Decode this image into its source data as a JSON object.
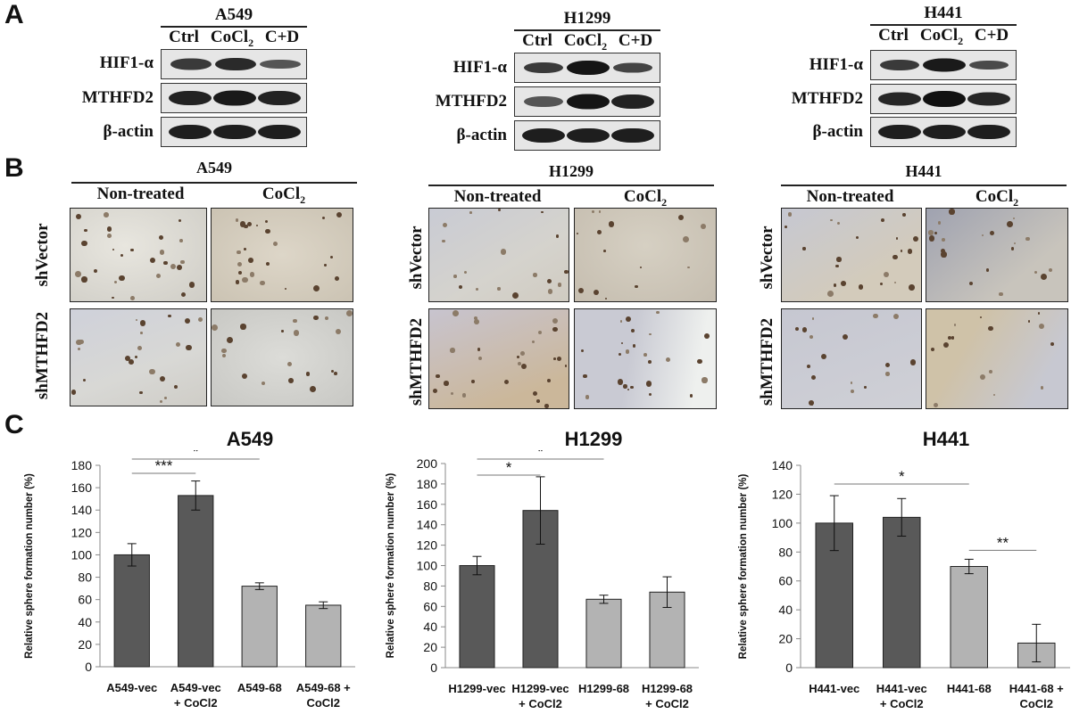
{
  "panel_letters": {
    "a": "A",
    "b": "B",
    "c": "C"
  },
  "panel_a": {
    "blocks": [
      {
        "cell_line": "A549",
        "lanes": [
          "Ctrl",
          "CoCl",
          "C+D"
        ],
        "lane_sub": "2",
        "rows": [
          "HIF1-α",
          "MTHFD2",
          "β-actin"
        ]
      },
      {
        "cell_line": "H1299",
        "lanes": [
          "Ctrl",
          "CoCl",
          "C+D"
        ],
        "lane_sub": "2",
        "rows": [
          "HIF1-α",
          "MTHFD2",
          "β-actin"
        ]
      },
      {
        "cell_line": "H441",
        "lanes": [
          "Ctrl",
          "CoCl",
          "C+D"
        ],
        "lane_sub": "2",
        "rows": [
          "HIF1-α",
          "MTHFD2",
          "β-actin"
        ]
      }
    ]
  },
  "panel_b": {
    "blocks": [
      {
        "cell_line": "A549",
        "conditions": [
          "Non-treated",
          "CoCl"
        ],
        "cond_sub": "2",
        "rows": [
          "shVector",
          "shMTHFD2"
        ]
      },
      {
        "cell_line": "H1299",
        "conditions": [
          "Non-treated",
          "CoCl"
        ],
        "cond_sub": "2",
        "rows": [
          "shVector",
          "shMTHFD2"
        ]
      },
      {
        "cell_line": "H441",
        "conditions": [
          "Non-treated",
          "CoCl"
        ],
        "cond_sub": "2",
        "rows": [
          "shVector",
          "shMTHFD2"
        ]
      }
    ]
  },
  "chart_data": [
    {
      "type": "bar",
      "title": "A549",
      "ylabel": "Relative sphere formation number (%)",
      "xlabel": "",
      "ylim": [
        0,
        180
      ],
      "yticks": [
        0,
        20,
        40,
        60,
        80,
        100,
        120,
        140,
        160,
        180
      ],
      "categories": [
        [
          "A549-vec"
        ],
        [
          "A549-vec",
          "+ CoCl2"
        ],
        [
          "A549-68"
        ],
        [
          "A549-68 +",
          "CoCl2"
        ]
      ],
      "values": [
        100,
        153,
        72,
        55
      ],
      "errors": [
        10,
        13,
        3,
        3
      ],
      "bar_colors": [
        "#595959",
        "#595959",
        "#b3b3b3",
        "#b3b3b3"
      ],
      "significance": [
        {
          "from": 0,
          "to": 1,
          "label": "***"
        },
        {
          "from": 0,
          "to": 2,
          "label": "*"
        }
      ]
    },
    {
      "type": "bar",
      "title": "H1299",
      "ylabel": "Relative sphere formation number (%)",
      "xlabel": "",
      "ylim": [
        0,
        200
      ],
      "yticks": [
        0,
        20,
        40,
        60,
        80,
        100,
        120,
        140,
        160,
        180,
        200
      ],
      "categories": [
        [
          "H1299-vec"
        ],
        [
          "H1299-vec",
          "+ CoCl2"
        ],
        [
          "H1299-68"
        ],
        [
          "H1299-68",
          "+ CoCl2"
        ]
      ],
      "values": [
        100,
        154,
        67,
        74
      ],
      "errors": [
        9,
        33,
        4,
        15
      ],
      "bar_colors": [
        "#595959",
        "#595959",
        "#b3b3b3",
        "#b3b3b3"
      ],
      "significance": [
        {
          "from": 0,
          "to": 1,
          "label": "*"
        },
        {
          "from": 0,
          "to": 2,
          "label": "*"
        }
      ]
    },
    {
      "type": "bar",
      "title": "H441",
      "ylabel": "Relative sphere formation number (%)",
      "xlabel": "",
      "ylim": [
        0,
        140
      ],
      "yticks": [
        0,
        20,
        40,
        60,
        80,
        100,
        120,
        140
      ],
      "categories": [
        [
          "H441-vec"
        ],
        [
          "H441-vec",
          "+ CoCl2"
        ],
        [
          "H441-68"
        ],
        [
          "H441-68 +",
          "CoCl2"
        ]
      ],
      "values": [
        100,
        104,
        70,
        17
      ],
      "errors": [
        19,
        13,
        5,
        13
      ],
      "bar_colors": [
        "#595959",
        "#595959",
        "#b3b3b3",
        "#b3b3b3"
      ],
      "significance": [
        {
          "from": 0,
          "to": 2,
          "label": "*"
        },
        {
          "from": 2,
          "to": 3,
          "label": "**"
        }
      ]
    }
  ]
}
